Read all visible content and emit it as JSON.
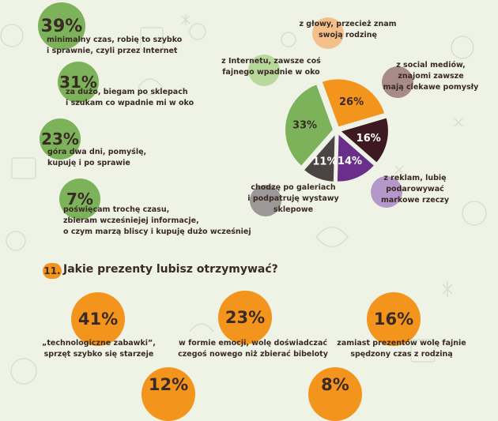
{
  "colors": {
    "background": "#eef3e5",
    "green": "#7bb25a",
    "orange": "#f3941d",
    "dark_maroon": "#3d1a22",
    "purple": "#6a2f8a",
    "dark_gray": "#4a4443",
    "text": "#3a2a24"
  },
  "time_stats": [
    {
      "percent": "39%",
      "text": [
        "minimalny czas, robię to szybko",
        "i sprawnie, czyli przez Internet"
      ]
    },
    {
      "percent": "31%",
      "text": [
        "za dużo, biegam po sklepach",
        "i szukam co wpadnie mi w oko"
      ]
    },
    {
      "percent": "23%",
      "text": [
        "góra dwa dni, pomyślę,",
        "kupuję i po sprawie"
      ]
    },
    {
      "percent": "7%",
      "text": [
        "poświęcam trochę czasu,",
        "zbieram wcześniejej informacje,",
        "o czym marzą bliscy i kupuję dużo wcześniej"
      ]
    }
  ],
  "chart_data": {
    "type": "pie",
    "slices": [
      {
        "value": 26,
        "label": "26%",
        "description": [
          "z głowy, przecież znam",
          "swoją rodzinę"
        ],
        "color": "#f3941d",
        "bubble_color": "#f3c08a"
      },
      {
        "value": 16,
        "label": "16%",
        "description": [
          "z social mediów,",
          "znajomi zawsze",
          "mają ciekawe pomysły"
        ],
        "color": "#3d1a22",
        "bubble_color": "#a88a87"
      },
      {
        "value": 14,
        "label": "14%",
        "description": [
          "z reklam, lubię",
          "podarowywać",
          "markowe rzeczy"
        ],
        "color": "#6a2f8a",
        "bubble_color": "#b498c9"
      },
      {
        "value": 11,
        "label": "11%",
        "description": [
          "chodzę po galeriach",
          "i podpatruję wystawy",
          "sklepowe"
        ],
        "color": "#4a4443",
        "bubble_color": "#9c9897"
      },
      {
        "value": 33,
        "label": "33%",
        "description": [
          "z Internetu, zawsze coś",
          "fajnego wpadnie w oko"
        ],
        "color": "#7bb25a",
        "bubble_color": "#b9d89c"
      }
    ]
  },
  "question": {
    "number": "11.",
    "text": "Jakie prezenty lubisz otrzymywać?"
  },
  "gift_stats": [
    {
      "percent": "41%",
      "text": [
        "„technologiczne zabawki”,",
        "sprzęt szybko się starzeje"
      ]
    },
    {
      "percent": "23%",
      "text": [
        "w formie emocji, wolę doświadczać",
        "czegoś nowego niż zbierać bibeloty"
      ]
    },
    {
      "percent": "16%",
      "text": [
        "zamiast prezentów wolę fajnie",
        "spędzony czas z rodziną"
      ]
    },
    {
      "percent": "12%",
      "text": []
    },
    {
      "percent": "8%",
      "text": []
    }
  ]
}
